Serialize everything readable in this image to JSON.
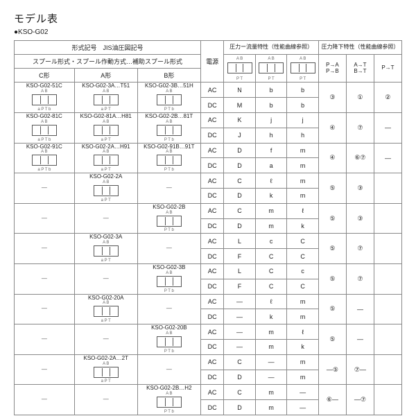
{
  "title": "モデル表",
  "sub": "●KSO-G02",
  "hdr": {
    "row1a": "形式記号　JIS油圧図記号",
    "row1b": "電源",
    "row1c": "圧力ー流量特性（性能曲線参照）",
    "row1d": "圧力降下特性（性能曲線参照）",
    "row2": "スプール形式・スプール作動方式…補助スプール形式",
    "cC": "C形",
    "cA": "A形",
    "cB": "B形",
    "f1t": "A B",
    "f1b": "P T",
    "f2t": "A B",
    "f2b": "P T",
    "f3t": "A B",
    "f3b": "P T",
    "d1t": "P→A",
    "d1b": "P→B",
    "d2t": "A→T",
    "d2b": "B→T",
    "d3": "P→T"
  },
  "g": [
    {
      "c": "KSO-G02-51C",
      "a": "KSO-G02-3A…T51",
      "b": "KSO-G02-3B…51H",
      "r1": [
        "AC",
        "N",
        "b",
        "b"
      ],
      "r2": [
        "DC",
        "M",
        "b",
        "b"
      ],
      "pd": [
        "③",
        "①",
        "②"
      ]
    },
    {
      "c": "KSO-G02-81C",
      "a": "KSO-G02-81A…H81",
      "b": "KSO-G02-2B…81T",
      "r1": [
        "AC",
        "K",
        "j",
        "j"
      ],
      "r2": [
        "DC",
        "J",
        "h",
        "h"
      ],
      "pd": [
        "④",
        "⑦",
        "—"
      ]
    },
    {
      "c": "KSO-G02-91C",
      "a": "KSO-G02-2A…H91",
      "b": "KSO-G02-91B…91T",
      "r1": [
        "AC",
        "D",
        "f",
        "m"
      ],
      "r2": [
        "DC",
        "D",
        "a",
        "m"
      ],
      "pd": [
        "④",
        "⑥⑦",
        "—"
      ]
    },
    {
      "c": "—",
      "a": "KSO-G02-2A",
      "b": "—",
      "r1": [
        "AC",
        "C",
        "ℓ",
        "m"
      ],
      "r2": [
        "DC",
        "D",
        "k",
        "m"
      ],
      "pd": [
        "⑤",
        "③",
        ""
      ]
    },
    {
      "c": "—",
      "a": "—",
      "b": "KSO-G02-2B",
      "r1": [
        "AC",
        "C",
        "m",
        "ℓ"
      ],
      "r2": [
        "DC",
        "D",
        "m",
        "k"
      ],
      "pd": [
        "⑤",
        "③",
        ""
      ]
    },
    {
      "c": "—",
      "a": "KSO-G02-3A",
      "b": "—",
      "r1": [
        "AC",
        "L",
        "c",
        "C"
      ],
      "r2": [
        "DC",
        "F",
        "C",
        "C"
      ],
      "pd": [
        "⑤",
        "⑦",
        ""
      ]
    },
    {
      "c": "—",
      "a": "—",
      "b": "KSO-G02-3B",
      "r1": [
        "AC",
        "L",
        "C",
        "c"
      ],
      "r2": [
        "DC",
        "F",
        "C",
        "C"
      ],
      "pd": [
        "⑤",
        "⑦",
        ""
      ]
    },
    {
      "c": "—",
      "a": "KSO-G02-20A",
      "b": "—",
      "r1": [
        "AC",
        "—",
        "ℓ",
        "m"
      ],
      "r2": [
        "DC",
        "—",
        "k",
        "m"
      ],
      "pd": [
        "⑤",
        "—",
        ""
      ]
    },
    {
      "c": "—",
      "a": "—",
      "b": "KSO-G02-20B",
      "r1": [
        "AC",
        "—",
        "m",
        "ℓ"
      ],
      "r2": [
        "DC",
        "—",
        "m",
        "k"
      ],
      "pd": [
        "⑤",
        "—",
        ""
      ]
    },
    {
      "c": "—",
      "a": "KSO-G02-2A…2T",
      "b": "—",
      "r1": [
        "AC",
        "C",
        "",
        "m"
      ],
      "r2": [
        "DC",
        "D",
        "",
        "m"
      ],
      "pd": [
        "—⑤",
        "⑦—",
        ""
      ]
    },
    {
      "c": "—",
      "a": "—",
      "b": "KSO-G02-2B…H2",
      "r1": [
        "AC",
        "C",
        "m",
        ""
      ],
      "r2": [
        "DC",
        "D",
        "m",
        ""
      ],
      "pd": [
        "⑥—",
        "—⑦",
        ""
      ]
    }
  ],
  "p": {
    "ab": "A B",
    "pt": "P T",
    "apt": "a   P T",
    "ptb": "P T   b",
    "aptb": "a   P T   b"
  }
}
